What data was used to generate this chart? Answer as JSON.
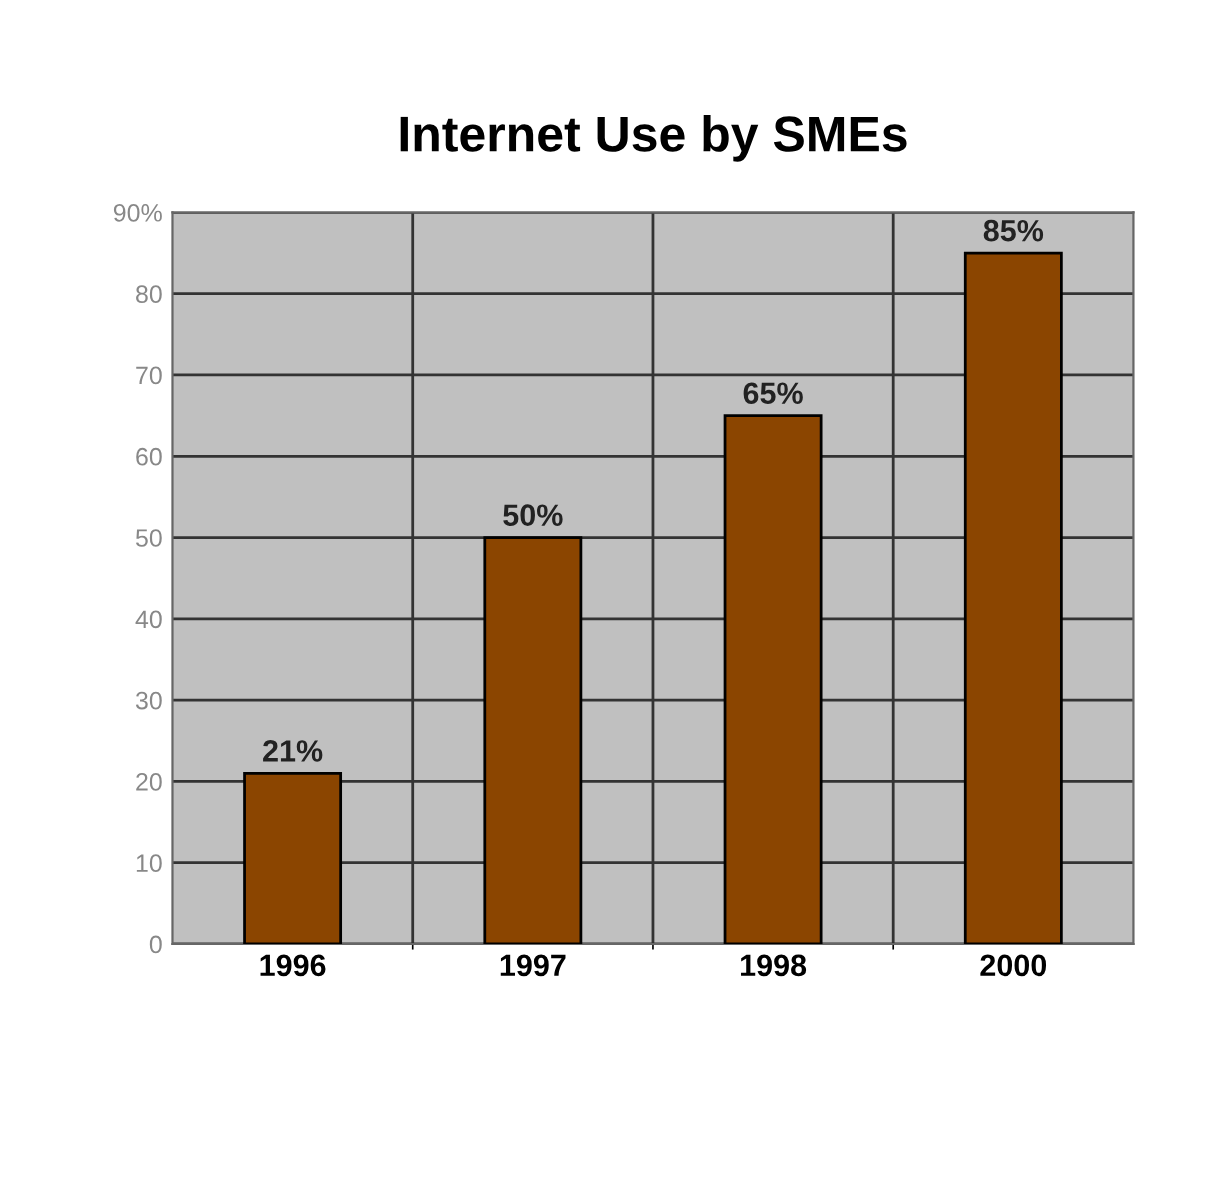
{
  "chart_data": {
    "type": "bar",
    "title": "Internet Use by SMEs",
    "categories": [
      "1996",
      "1997",
      "1998",
      "2000"
    ],
    "values": [
      21,
      50,
      65,
      85
    ],
    "value_labels": [
      "21%",
      "50%",
      "65%",
      "85%"
    ],
    "color": "#8b4500",
    "ylim": [
      0,
      90
    ],
    "yticks": [
      0,
      10,
      20,
      30,
      40,
      50,
      60,
      70,
      80,
      {
        "value": 90,
        "label": "90%"
      }
    ],
    "grid": true
  }
}
